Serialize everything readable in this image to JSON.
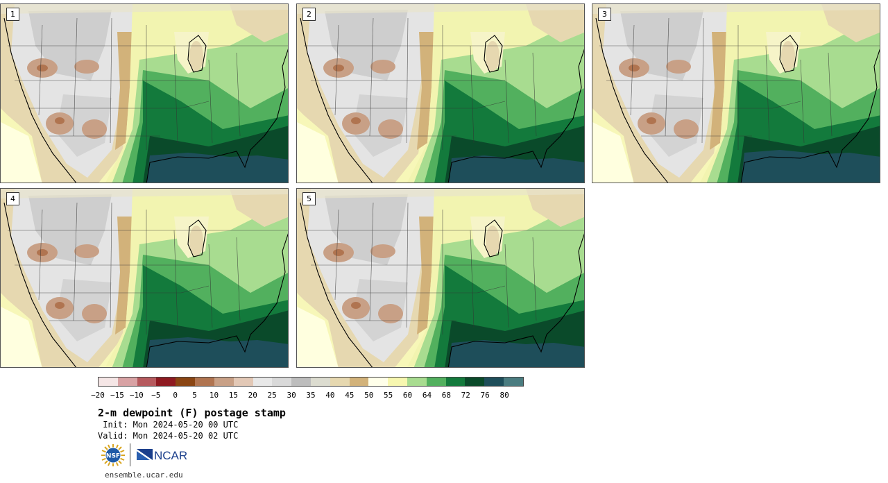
{
  "panels": [
    {
      "label": "1",
      "variant": "a"
    },
    {
      "label": "2",
      "variant": "b"
    },
    {
      "label": "3",
      "variant": "c"
    },
    {
      "label": "4",
      "variant": "a"
    },
    {
      "label": "5",
      "variant": "b"
    }
  ],
  "colorbar": {
    "colors": [
      "#f5e6e6",
      "#d8a2a4",
      "#b65a5e",
      "#8e1a21",
      "#8a4513",
      "#b07450",
      "#c8a086",
      "#e2c8b6",
      "#e8e8e8",
      "#d9d9d9",
      "#bdbdbd",
      "#dcdcd0",
      "#e6d8b0",
      "#d2b27a",
      "#ffffea",
      "#f7f7b0",
      "#a8dc90",
      "#52b05e",
      "#137a3c",
      "#0a4a2a",
      "#1e4e5a",
      "#4a7c80"
    ],
    "tick_labels": [
      "−20",
      "−15",
      "−10",
      "−5",
      "0",
      "5",
      "10",
      "15",
      "20",
      "25",
      "30",
      "35",
      "40",
      "45",
      "50",
      "55",
      "60",
      "64",
      "68",
      "72",
      "76",
      "80"
    ]
  },
  "title": "2-m dewpoint (F) postage stamp",
  "init_text": " Init: Mon 2024-05-20 00 UTC",
  "valid_text": "Valid: Mon 2024-05-20 02 UTC",
  "logos": {
    "nsf_text": "NSF",
    "ncar_text": "NCAR"
  },
  "site": "ensemble.ucar.edu"
}
